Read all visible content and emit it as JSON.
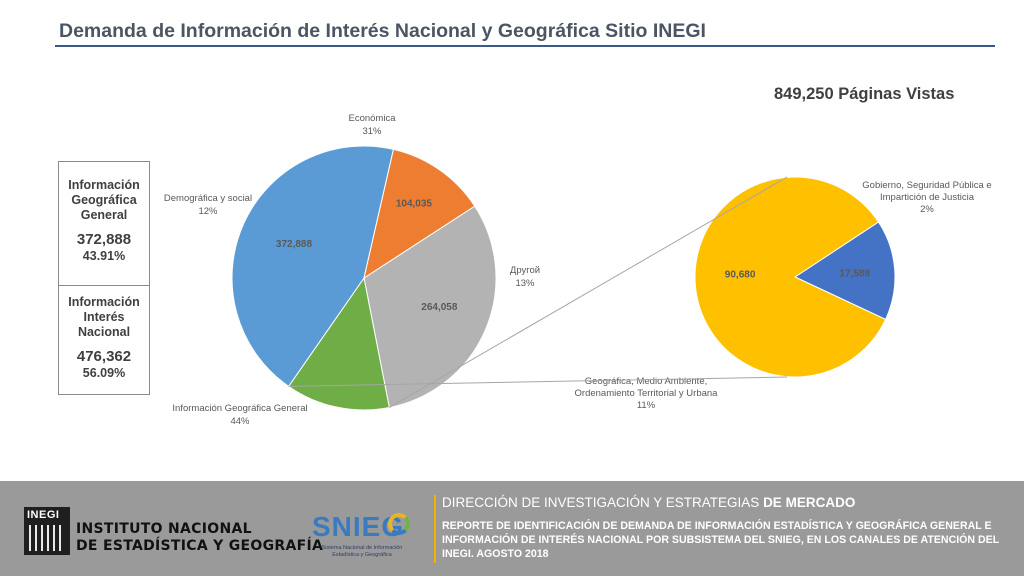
{
  "title": "Demanda de Información de Interés Nacional y Geográfica Sitio INEGI",
  "page_views": "849,250 Páginas Vistas",
  "summary": {
    "geo": {
      "label": "Información\nGeográfica\nGeneral",
      "value": "372,888",
      "pct": "43.91%"
    },
    "nat": {
      "label": "Información\nInterés\nNacional",
      "value": "476,362",
      "pct": "56.09%"
    }
  },
  "chart_data": [
    {
      "type": "pie",
      "slices": [
        {
          "name": "Económica",
          "value": 264058,
          "percent_label": "31%",
          "color": "#b3b3b3"
        },
        {
          "name": "Другой",
          "value": 108269,
          "percent_label": "13%",
          "color": "#6fad46"
        },
        {
          "name": "Información Geográfica General",
          "value": 372888,
          "percent_label": "44%",
          "color": "#5b9bd5"
        },
        {
          "name": "Demográfica y social",
          "value": 104035,
          "percent_label": "12%",
          "color": "#ed7d31"
        }
      ],
      "data_labels": {
        "Económica": "264,058",
        "Información Geográfica General": "372,888",
        "Demográfica y social": "104,035"
      }
    },
    {
      "type": "pie",
      "slices": [
        {
          "name": "Geográfica, Medio Ambiente, Ordenamiento Territorial y Urbana",
          "value": 90680,
          "percent_label": "11%",
          "color": "#ffc000"
        },
        {
          "name": "Gobierno, Seguridad Pública e Impartición de Justicia",
          "value": 17589,
          "percent_label": "2%",
          "color": "#4472c4"
        }
      ],
      "data_labels": {
        "Geográfica, Medio Ambiente, Ordenamiento Territorial y Urbana": "90,680",
        "Gobierno, Seguridad Pública e Impartición de Justicia": "17,589"
      }
    }
  ],
  "footer": {
    "inegi_logo_text": "INEGI",
    "inegi_name_line1": "INSTITUTO NACIONAL",
    "inegi_name_line2": "DE ESTADÍSTICA Y GEOGRAFÍA",
    "snieg": "SNIEG",
    "snieg_sub": "Sistema Nacional de Información Estadística y Geográfica",
    "direction_a": "DIRECCIÓN DE INVESTIGACIÓN Y ESTRATEGIAS ",
    "direction_b": "DE MERCADO",
    "report": "REPORTE DE IDENTIFICACIÓN DE DEMANDA DE INFORMACIÓN ESTADÍSTICA Y GEOGRÁFICA GENERAL E INFORMACIÓN DE INTERÉS NACIONAL POR SUBSISTEMA DEL SNIEG, EN LOS CANALES DE ATENCIÓN DEL INEGI. AGOSTO 2018"
  }
}
